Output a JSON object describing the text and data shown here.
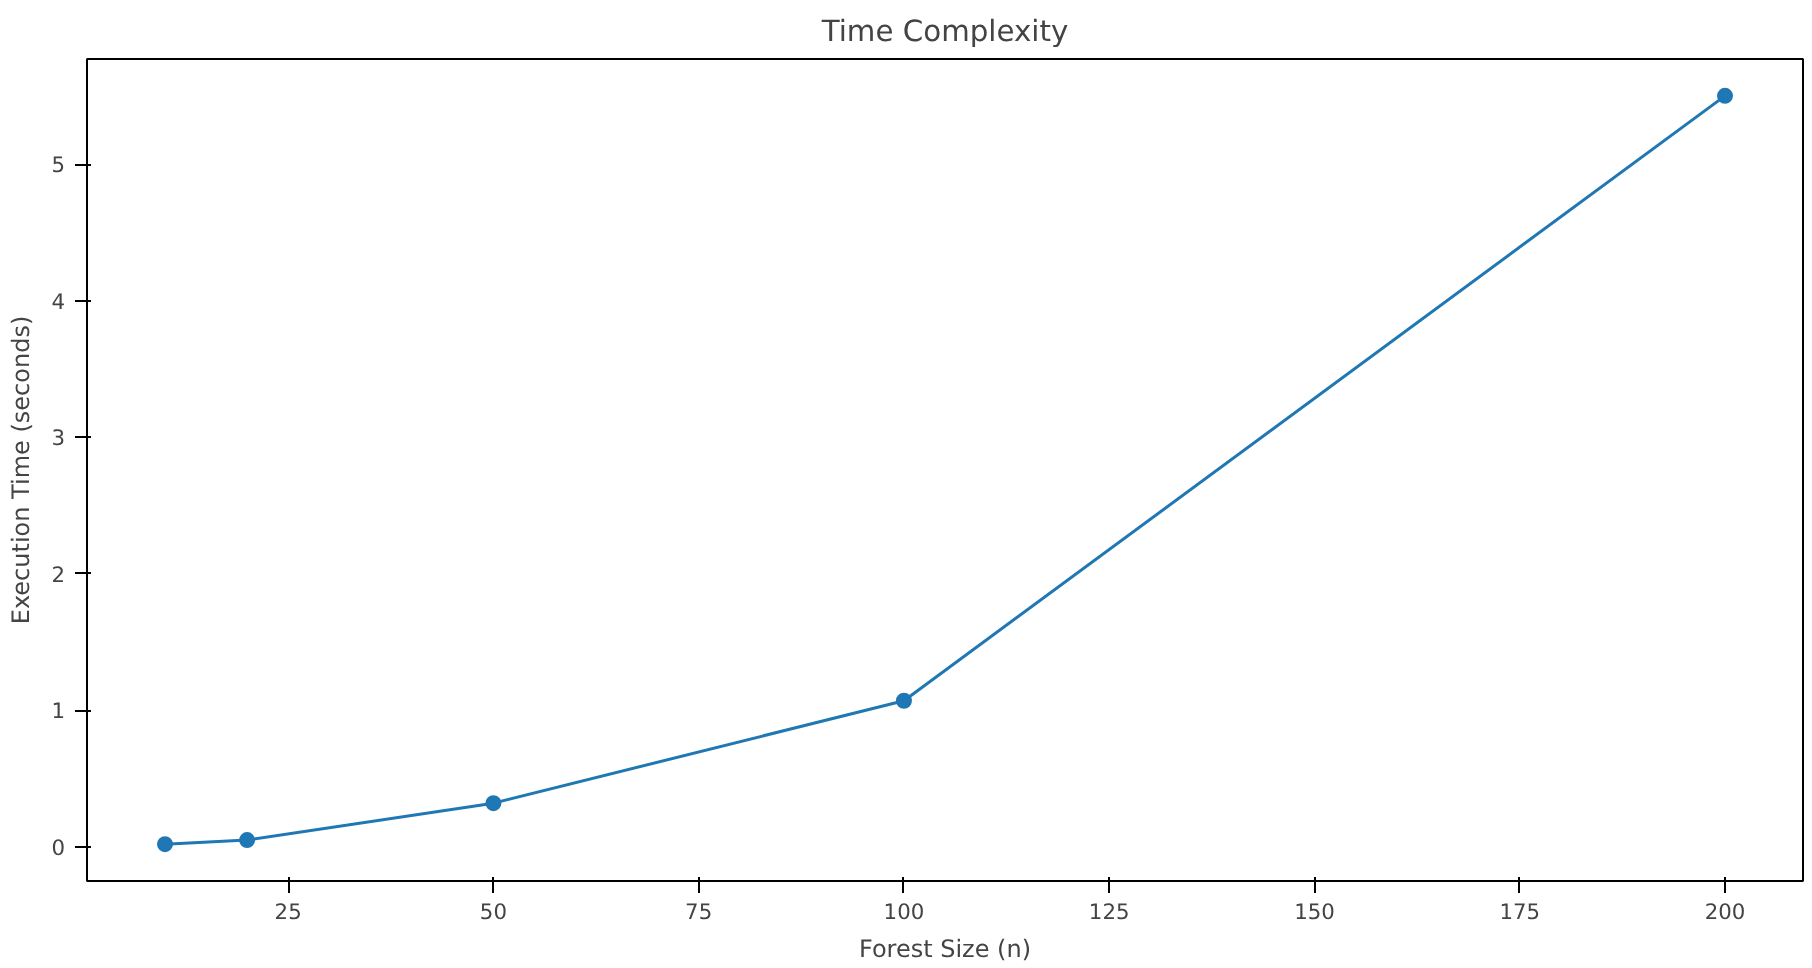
{
  "chart_data": {
    "type": "line",
    "title": "Time Complexity",
    "xlabel": "Forest Size (n)",
    "ylabel": "Execution Time (seconds)",
    "x": [
      10,
      20,
      50,
      100,
      200
    ],
    "series": [
      {
        "color": "#1f77b4",
        "values": [
          0.02,
          0.05,
          0.32,
          1.07,
          5.5
        ]
      }
    ],
    "xlim": [
      0.5,
      209.5
    ],
    "ylim": [
      -0.25,
      5.77
    ],
    "xticks": [
      25,
      50,
      75,
      100,
      125,
      150,
      175,
      200
    ],
    "yticks": [
      0,
      1,
      2,
      3,
      4,
      5
    ],
    "marker": "circle",
    "line_style": "solid",
    "grid": false
  }
}
